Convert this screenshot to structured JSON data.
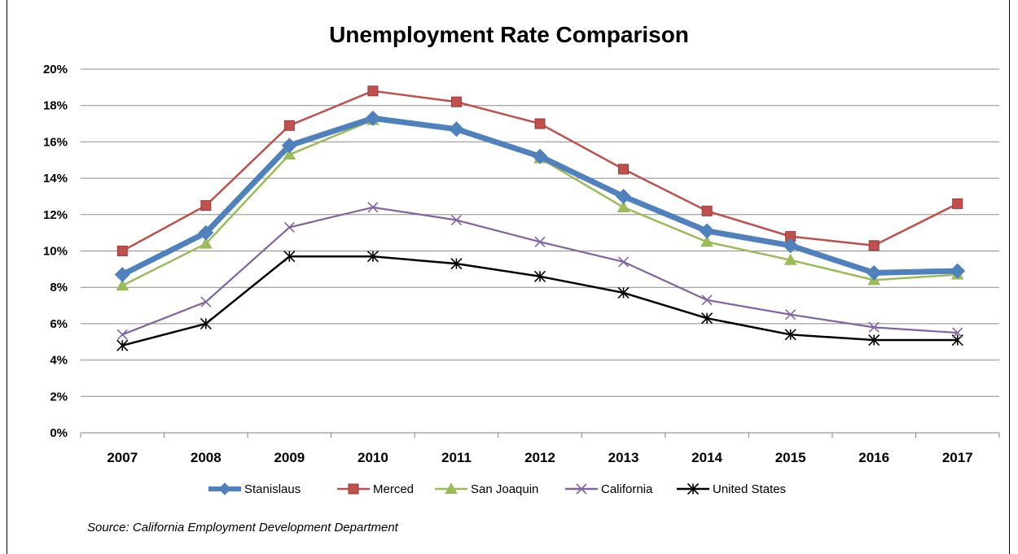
{
  "chart_data": {
    "type": "line",
    "title": "Unemployment Rate Comparison",
    "x": [
      "2007",
      "2008",
      "2009",
      "2010",
      "2011",
      "2012",
      "2013",
      "2014",
      "2015",
      "2016",
      "2017"
    ],
    "y_ticks": [
      "0%",
      "2%",
      "4%",
      "6%",
      "8%",
      "10%",
      "12%",
      "14%",
      "16%",
      "18%",
      "20%"
    ],
    "ylim": [
      0,
      20
    ],
    "grid": "horizontal",
    "legend": "bottom",
    "series": [
      {
        "name": "Stanislaus",
        "color": "#4f81bd",
        "marker": "diamond",
        "values": [
          8.7,
          11.0,
          15.8,
          17.3,
          16.7,
          15.2,
          13.0,
          11.1,
          10.3,
          8.8,
          8.9
        ]
      },
      {
        "name": "Merced",
        "color": "#c0504d",
        "marker": "square",
        "values": [
          10.0,
          12.5,
          16.9,
          18.8,
          18.2,
          17.0,
          14.5,
          12.2,
          10.8,
          10.3,
          12.6
        ]
      },
      {
        "name": "San Joaquin",
        "color": "#9bbb59",
        "marker": "triangle",
        "values": [
          8.1,
          10.4,
          15.3,
          17.2,
          16.8,
          15.1,
          12.4,
          10.5,
          9.5,
          8.4,
          8.7
        ]
      },
      {
        "name": "California",
        "color": "#8064a2",
        "marker": "x",
        "values": [
          5.4,
          7.2,
          11.3,
          12.4,
          11.7,
          10.5,
          9.4,
          7.3,
          6.5,
          5.8,
          5.5
        ]
      },
      {
        "name": "United States",
        "color": "#000000",
        "marker": "star",
        "values": [
          4.8,
          6.0,
          9.7,
          9.7,
          9.3,
          8.6,
          7.7,
          6.3,
          5.4,
          5.1,
          5.1
        ]
      }
    ],
    "source": "Source: California  Employment Development Department"
  }
}
